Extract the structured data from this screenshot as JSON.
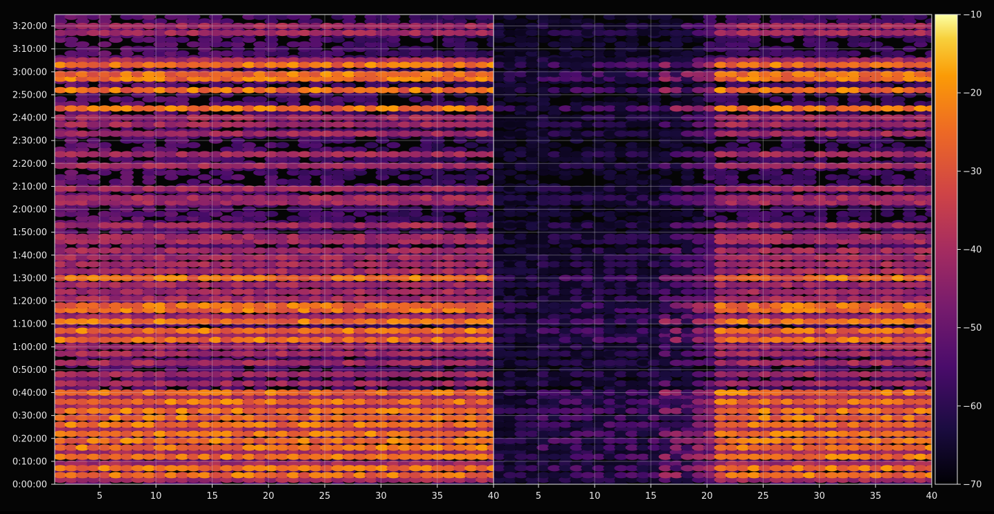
{
  "chart_data": {
    "type": "heatmap",
    "title": "",
    "xlabel": "",
    "ylabel": "",
    "panels": [
      {
        "name": "",
        "xlim": [
          1,
          40
        ],
        "x_ticks": [
          5,
          10,
          15,
          20,
          25,
          30,
          35,
          40
        ]
      },
      {
        "name": "",
        "xlim": [
          1,
          40
        ],
        "x_ticks": [
          5,
          10,
          15,
          20,
          25,
          30,
          35,
          40
        ]
      }
    ],
    "y_ticks": [
      "0:00:00",
      "0:10:00",
      "0:20:00",
      "0:30:00",
      "0:40:00",
      "0:50:00",
      "1:00:00",
      "1:10:00",
      "1:20:00",
      "1:30:00",
      "1:40:00",
      "1:50:00",
      "2:00:00",
      "2:10:00",
      "2:20:00",
      "2:30:00",
      "2:40:00",
      "2:50:00",
      "3:00:00",
      "3:10:00",
      "3:20:00"
    ],
    "y_range_seconds": [
      0,
      12300
    ],
    "colorbar": {
      "colormap": "inferno",
      "range": [
        -70,
        -10
      ],
      "ticks": [
        "−10",
        "−20",
        "−30",
        "−40",
        "−50",
        "−60",
        "−70"
      ]
    },
    "grid": true,
    "bands": {
      "strong_times": [
        "0:04:00",
        "0:07:00",
        "0:12:00",
        "0:16:00",
        "0:19:00",
        "0:22:00",
        "0:26:00",
        "0:29:00",
        "0:32:00",
        "0:36:00",
        "0:40:00",
        "1:03:00",
        "1:07:00",
        "1:11:00",
        "1:16:00",
        "1:18:00",
        "1:30:00",
        "2:44:00",
        "2:52:00",
        "2:57:00",
        "2:59:00",
        "3:03:00"
      ],
      "medium_times": [
        "0:02:00",
        "0:09:00",
        "0:14:00",
        "0:24:00",
        "0:34:00",
        "0:38:00",
        "0:44:00",
        "0:48:00",
        "0:53:00",
        "0:57:00",
        "1:00:00",
        "1:05:00",
        "1:13:00",
        "1:21:00",
        "1:24:00",
        "1:27:00",
        "1:33:00",
        "1:36:00",
        "1:39:00",
        "1:42:00",
        "1:46:00",
        "1:48:00",
        "1:53:00",
        "2:03:00",
        "2:05:00",
        "2:09:00",
        "2:19:00",
        "2:24:00",
        "2:33:00",
        "2:37:00",
        "2:40:00",
        "3:05:00",
        "3:17:00",
        "3:20:00"
      ]
    }
  }
}
